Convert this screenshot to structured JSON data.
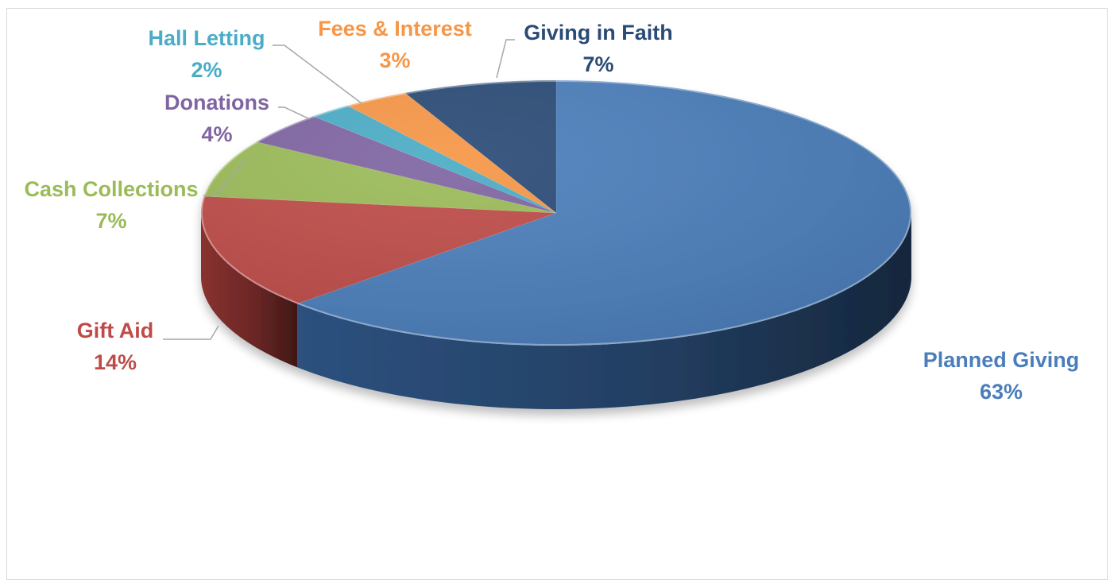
{
  "chart_data": {
    "type": "pie",
    "style": "3d",
    "slices": [
      {
        "label": "Planned Giving",
        "percent_label": "63%",
        "value": 63,
        "color": "#4a7ebb",
        "side_color": "#2f5585"
      },
      {
        "label": "Gift Aid",
        "percent_label": "14%",
        "value": 14,
        "color": "#be4b48",
        "side_color": "#8f3432"
      },
      {
        "label": "Cash Collections",
        "percent_label": "7%",
        "value": 7,
        "color": "#9bbb59",
        "side_color": "#6f8a3c"
      },
      {
        "label": "Donations",
        "percent_label": "4%",
        "value": 4,
        "color": "#7f64a2",
        "side_color": "#5b4676"
      },
      {
        "label": "Hall Letting",
        "percent_label": "2%",
        "value": 2,
        "color": "#4bacc6",
        "side_color": "#327d91"
      },
      {
        "label": "Fees & Interest",
        "percent_label": "3%",
        "value": 3,
        "color": "#f79646",
        "side_color": "#b86b2b"
      },
      {
        "label": "Giving in Faith",
        "percent_label": "7%",
        "value": 7,
        "color": "#2a4b76",
        "side_color": "#1b3152"
      }
    ],
    "label_colors": {
      "Planned Giving": "#4a7ebb",
      "Gift Aid": "#be4b48",
      "Cash Collections": "#9bbb59",
      "Donations": "#7f64a2",
      "Hall Letting": "#4bacc6",
      "Fees & Interest": "#f79646",
      "Giving in Faith": "#2a4b76"
    }
  }
}
